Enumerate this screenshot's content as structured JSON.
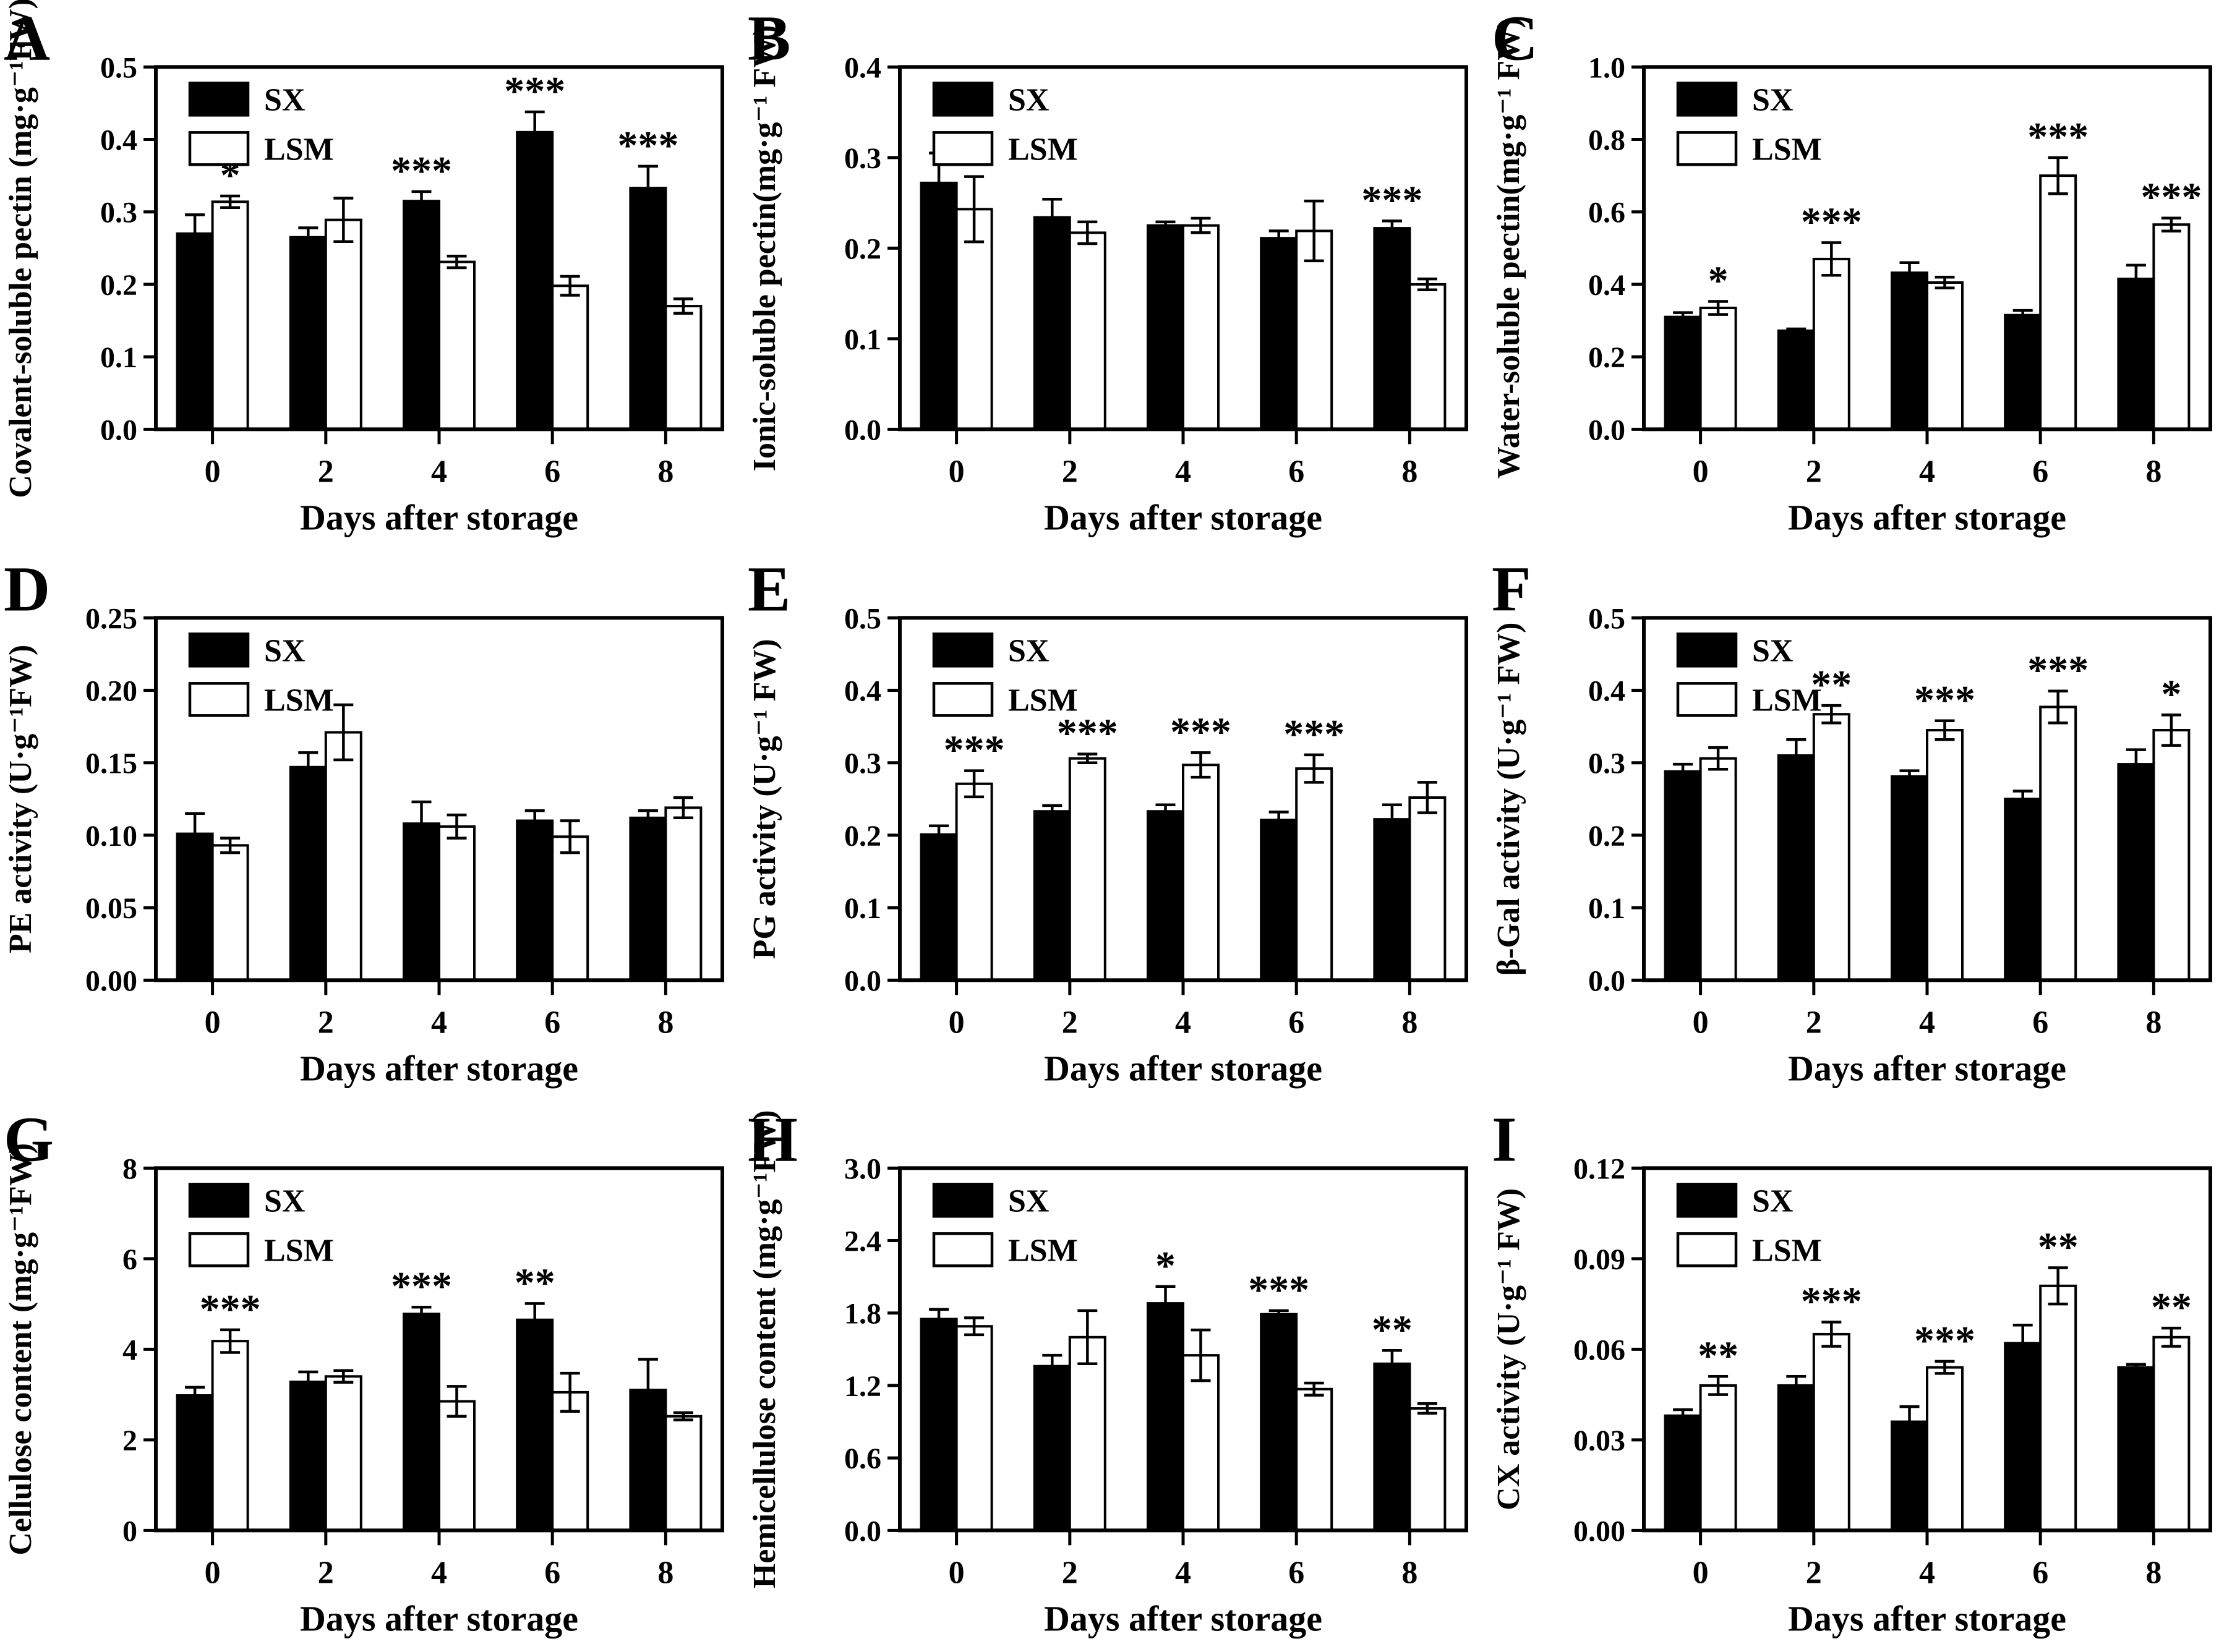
{
  "figure": {
    "xlabel": "Days after storage",
    "categories": [
      "0",
      "2",
      "4",
      "6",
      "8"
    ],
    "legend": [
      {
        "label": "SX",
        "fill": "#000000"
      },
      {
        "label": "LSM",
        "fill": "#ffffff"
      }
    ],
    "colors": {
      "bar_sx": "#000000",
      "bar_lsm": "#ffffff",
      "stroke": "#000000",
      "background": "#ffffff"
    }
  },
  "chart_data": [
    {
      "panel": "A",
      "type": "bar",
      "title": "",
      "xlabel": "Days after storage",
      "ylabel": "Covalent-soluble pectin (mg·g⁻¹FW)",
      "ylim": [
        0,
        0.5
      ],
      "yticks": [
        0.0,
        0.1,
        0.2,
        0.3,
        0.4,
        0.5
      ],
      "ydecimals": 1,
      "categories": [
        "0",
        "2",
        "4",
        "6",
        "8"
      ],
      "series": [
        {
          "name": "SX",
          "values": [
            0.27,
            0.265,
            0.315,
            0.41,
            0.333
          ],
          "errors": [
            0.026,
            0.013,
            0.013,
            0.028,
            0.03
          ]
        },
        {
          "name": "LSM",
          "values": [
            0.314,
            0.289,
            0.231,
            0.198,
            0.17
          ],
          "errors": [
            0.008,
            0.03,
            0.008,
            0.013,
            0.01
          ]
        }
      ],
      "significance": [
        {
          "i": 0,
          "on": "LSM",
          "text": "*"
        },
        {
          "i": 2,
          "on": "SX",
          "text": "***"
        },
        {
          "i": 3,
          "on": "SX",
          "text": "***"
        },
        {
          "i": 4,
          "on": "SX",
          "text": "***"
        }
      ]
    },
    {
      "panel": "B",
      "type": "bar",
      "title": "",
      "xlabel": "Days after storage",
      "ylabel": "Ionic-soluble pectin(mg·g⁻¹ FW)",
      "ylim": [
        0,
        0.4
      ],
      "yticks": [
        0.0,
        0.1,
        0.2,
        0.3,
        0.4
      ],
      "ydecimals": 1,
      "categories": [
        "0",
        "2",
        "4",
        "6",
        "8"
      ],
      "series": [
        {
          "name": "SX",
          "values": [
            0.272,
            0.234,
            0.225,
            0.211,
            0.222
          ],
          "errors": [
            0.033,
            0.02,
            0.004,
            0.008,
            0.008
          ]
        },
        {
          "name": "LSM",
          "values": [
            0.243,
            0.217,
            0.225,
            0.219,
            0.16
          ],
          "errors": [
            0.036,
            0.012,
            0.008,
            0.033,
            0.006
          ]
        }
      ],
      "significance": [
        {
          "i": 4,
          "on": "SX",
          "text": "***"
        }
      ]
    },
    {
      "panel": "C",
      "type": "bar",
      "title": "",
      "xlabel": "Days after storage",
      "ylabel": "Water-soluble pectin(mg·g⁻¹ FW)",
      "ylim": [
        0,
        1.0
      ],
      "yticks": [
        0.0,
        0.2,
        0.4,
        0.6,
        0.8,
        1.0
      ],
      "ydecimals": 1,
      "categories": [
        "0",
        "2",
        "4",
        "6",
        "8"
      ],
      "series": [
        {
          "name": "SX",
          "values": [
            0.31,
            0.272,
            0.432,
            0.315,
            0.415
          ],
          "errors": [
            0.012,
            0.005,
            0.028,
            0.013,
            0.038
          ]
        },
        {
          "name": "LSM",
          "values": [
            0.335,
            0.47,
            0.405,
            0.7,
            0.565
          ],
          "errors": [
            0.018,
            0.045,
            0.015,
            0.05,
            0.018
          ]
        }
      ],
      "significance": [
        {
          "i": 0,
          "on": "LSM",
          "text": "*"
        },
        {
          "i": 1,
          "on": "LSM",
          "text": "***"
        },
        {
          "i": 3,
          "on": "LSM",
          "text": "***"
        },
        {
          "i": 4,
          "on": "LSM",
          "text": "***"
        }
      ]
    },
    {
      "panel": "D",
      "type": "bar",
      "title": "",
      "xlabel": "Days after storage",
      "ylabel": "PE activity (U·g⁻¹FW)",
      "ylim": [
        0,
        0.25
      ],
      "yticks": [
        0.0,
        0.05,
        0.1,
        0.15,
        0.2,
        0.25
      ],
      "ydecimals": 2,
      "categories": [
        "0",
        "2",
        "4",
        "6",
        "8"
      ],
      "series": [
        {
          "name": "SX",
          "values": [
            0.101,
            0.147,
            0.108,
            0.11,
            0.112
          ],
          "errors": [
            0.014,
            0.01,
            0.015,
            0.007,
            0.005
          ]
        },
        {
          "name": "LSM",
          "values": [
            0.093,
            0.171,
            0.106,
            0.099,
            0.119
          ],
          "errors": [
            0.005,
            0.019,
            0.008,
            0.011,
            0.007
          ]
        }
      ],
      "significance": []
    },
    {
      "panel": "E",
      "type": "bar",
      "title": "",
      "xlabel": "Days after storage",
      "ylabel": "PG activity (U·g⁻¹ FW)",
      "ylim": [
        0,
        0.5
      ],
      "yticks": [
        0.0,
        0.1,
        0.2,
        0.3,
        0.4,
        0.5
      ],
      "ydecimals": 1,
      "categories": [
        "0",
        "2",
        "4",
        "6",
        "8"
      ],
      "series": [
        {
          "name": "SX",
          "values": [
            0.201,
            0.233,
            0.233,
            0.221,
            0.222
          ],
          "errors": [
            0.012,
            0.008,
            0.009,
            0.011,
            0.02
          ]
        },
        {
          "name": "LSM",
          "values": [
            0.271,
            0.306,
            0.297,
            0.292,
            0.252
          ],
          "errors": [
            0.018,
            0.006,
            0.017,
            0.019,
            0.021
          ]
        }
      ],
      "significance": [
        {
          "i": 0,
          "on": "LSM",
          "text": "***"
        },
        {
          "i": 1,
          "on": "LSM",
          "text": "***"
        },
        {
          "i": 2,
          "on": "LSM",
          "text": "***"
        },
        {
          "i": 3,
          "on": "LSM",
          "text": "***"
        }
      ]
    },
    {
      "panel": "F",
      "type": "bar",
      "title": "",
      "xlabel": "Days after storage",
      "ylabel": "β-Gal activity (U·g⁻¹ FW)",
      "ylim": [
        0,
        0.5
      ],
      "yticks": [
        0.0,
        0.1,
        0.2,
        0.3,
        0.4,
        0.5
      ],
      "ydecimals": 1,
      "categories": [
        "0",
        "2",
        "4",
        "6",
        "8"
      ],
      "series": [
        {
          "name": "SX",
          "values": [
            0.288,
            0.31,
            0.281,
            0.25,
            0.298
          ],
          "errors": [
            0.01,
            0.022,
            0.008,
            0.011,
            0.02
          ]
        },
        {
          "name": "LSM",
          "values": [
            0.306,
            0.367,
            0.345,
            0.377,
            0.345
          ],
          "errors": [
            0.015,
            0.012,
            0.013,
            0.022,
            0.021
          ]
        }
      ],
      "significance": [
        {
          "i": 1,
          "on": "LSM",
          "text": "**"
        },
        {
          "i": 2,
          "on": "LSM",
          "text": "***"
        },
        {
          "i": 3,
          "on": "LSM",
          "text": "***"
        },
        {
          "i": 4,
          "on": "LSM",
          "text": "*"
        }
      ]
    },
    {
      "panel": "G",
      "type": "bar",
      "title": "",
      "xlabel": "Days after storage",
      "ylabel": "Cellulose content (mg·g⁻¹FW)",
      "ylim": [
        0,
        8
      ],
      "yticks": [
        0,
        2,
        4,
        6,
        8
      ],
      "ydecimals": 0,
      "categories": [
        "0",
        "2",
        "4",
        "6",
        "8"
      ],
      "series": [
        {
          "name": "SX",
          "values": [
            2.98,
            3.28,
            4.78,
            4.65,
            3.1
          ],
          "errors": [
            0.18,
            0.22,
            0.15,
            0.36,
            0.68
          ]
        },
        {
          "name": "LSM",
          "values": [
            4.18,
            3.4,
            2.85,
            3.05,
            2.52
          ],
          "errors": [
            0.25,
            0.13,
            0.33,
            0.42,
            0.08
          ]
        }
      ],
      "significance": [
        {
          "i": 0,
          "on": "LSM",
          "text": "***"
        },
        {
          "i": 2,
          "on": "SX",
          "text": "***"
        },
        {
          "i": 3,
          "on": "SX",
          "text": "**"
        }
      ]
    },
    {
      "panel": "H",
      "type": "bar",
      "title": "",
      "xlabel": "Days after storage",
      "ylabel": "Hemicellulose content (mg·g⁻¹FW)",
      "ylim": [
        0,
        3.0
      ],
      "yticks": [
        0.0,
        0.6,
        1.2,
        1.8,
        2.4,
        3.0
      ],
      "ydecimals": 1,
      "categories": [
        "0",
        "2",
        "4",
        "6",
        "8"
      ],
      "series": [
        {
          "name": "SX",
          "values": [
            1.75,
            1.36,
            1.88,
            1.79,
            1.38
          ],
          "errors": [
            0.08,
            0.09,
            0.14,
            0.03,
            0.11
          ]
        },
        {
          "name": "LSM",
          "values": [
            1.69,
            1.6,
            1.45,
            1.17,
            1.01
          ],
          "errors": [
            0.07,
            0.22,
            0.21,
            0.05,
            0.04
          ]
        }
      ],
      "significance": [
        {
          "i": 2,
          "on": "SX",
          "text": "*"
        },
        {
          "i": 3,
          "on": "SX",
          "text": "***"
        },
        {
          "i": 4,
          "on": "SX",
          "text": "**"
        }
      ]
    },
    {
      "panel": "I",
      "type": "bar",
      "title": "",
      "xlabel": "Days after storage",
      "ylabel": "CX activity (U·g⁻¹ FW)",
      "ylim": [
        0,
        0.12
      ],
      "yticks": [
        0.0,
        0.03,
        0.06,
        0.09,
        0.12
      ],
      "ydecimals": 2,
      "categories": [
        "0",
        "2",
        "4",
        "6",
        "8"
      ],
      "series": [
        {
          "name": "SX",
          "values": [
            0.038,
            0.048,
            0.036,
            0.062,
            0.054
          ],
          "errors": [
            0.002,
            0.003,
            0.005,
            0.006,
            0.001
          ]
        },
        {
          "name": "LSM",
          "values": [
            0.048,
            0.065,
            0.054,
            0.081,
            0.064
          ],
          "errors": [
            0.003,
            0.004,
            0.002,
            0.006,
            0.003
          ]
        }
      ],
      "significance": [
        {
          "i": 0,
          "on": "LSM",
          "text": "**"
        },
        {
          "i": 1,
          "on": "LSM",
          "text": "***"
        },
        {
          "i": 2,
          "on": "LSM",
          "text": "***"
        },
        {
          "i": 3,
          "on": "LSM",
          "text": "**"
        },
        {
          "i": 4,
          "on": "LSM",
          "text": "**"
        }
      ]
    }
  ]
}
